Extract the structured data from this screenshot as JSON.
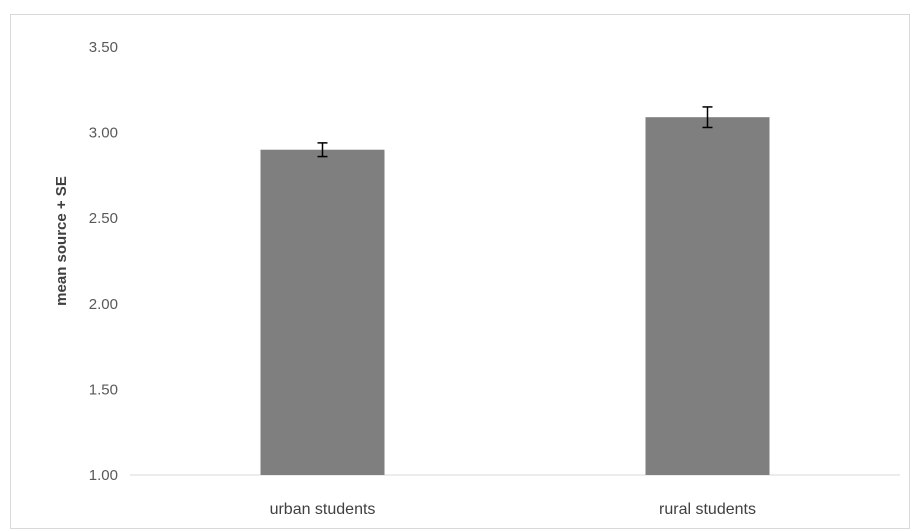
{
  "chart_data": {
    "type": "bar",
    "categories": [
      "urban students",
      "rural students"
    ],
    "values": [
      2.9,
      3.09
    ],
    "error": [
      0.04,
      0.06
    ],
    "ylabel": "mean source + SE",
    "xlabel": "",
    "ylim": [
      1.0,
      3.5
    ],
    "yticks": [
      "1.00",
      "1.50",
      "2.00",
      "2.50",
      "3.00",
      "3.50"
    ],
    "grid": false,
    "bar_color": "#7f7f7f",
    "errorbar_color": "#000000"
  }
}
